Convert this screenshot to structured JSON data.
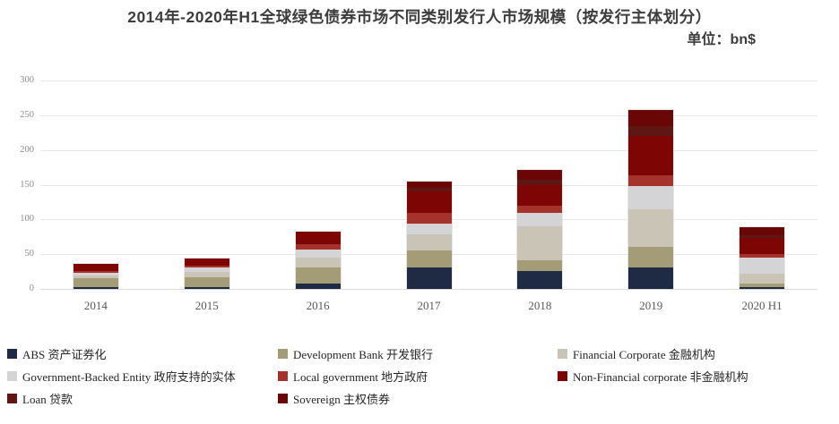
{
  "header": {
    "title": "2014年-2020年H1全球绿色债券市场不同类别发行人市场规模（按发行主体划分）",
    "unit": "单位：bn$"
  },
  "chart_data": {
    "type": "bar",
    "stacked": true,
    "title": "2014年-2020年H1全球绿色债券市场不同类别发行人市场规模（按发行主体划分）",
    "unit_label": "单位：bn$",
    "categories": [
      "2014",
      "2015",
      "2016",
      "2017",
      "2018",
      "2019",
      "2020 H1"
    ],
    "series": [
      {
        "name": "ABS 资产证券化",
        "color": "#1f2a45",
        "values": [
          3,
          3,
          8,
          31,
          26,
          31,
          3
        ]
      },
      {
        "name": "Development Bank 开发银行",
        "color": "#a49b77",
        "values": [
          13,
          14,
          23,
          24,
          15,
          29,
          5
        ]
      },
      {
        "name": "Financial Corporate 金融机构",
        "color": "#c9c4b5",
        "values": [
          3,
          7,
          14,
          23,
          49,
          55,
          14
        ]
      },
      {
        "name": "Government-Backed Entity 政府支持的实体",
        "color": "#d4d3d5",
        "values": [
          4.5,
          6.5,
          12,
          16,
          19,
          33,
          23
        ]
      },
      {
        "name": "Local government 地方政府",
        "color": "#a5332b",
        "values": [
          2.5,
          3,
          8,
          15,
          11,
          15,
          5
        ]
      },
      {
        "name": "Non-Financial corporate 非金融机构",
        "color": "#7d0605",
        "values": [
          10,
          10.5,
          17,
          31,
          29,
          57,
          24
        ]
      },
      {
        "name": "Loan 贷款",
        "color": "#5f1713",
        "values": [
          0,
          0,
          0,
          5,
          8,
          14,
          3
        ]
      },
      {
        "name": "Sovereign 主权债券",
        "color": "#6b0606",
        "values": [
          0,
          0,
          0,
          10,
          14,
          24,
          12
        ]
      }
    ],
    "totals": [
      36,
      44,
      82,
      155,
      171,
      258,
      89
    ],
    "ylim": [
      0,
      300
    ],
    "yticks": [
      0,
      50,
      100,
      150,
      200,
      250,
      300
    ],
    "grid": true,
    "legend_position": "bottom"
  }
}
